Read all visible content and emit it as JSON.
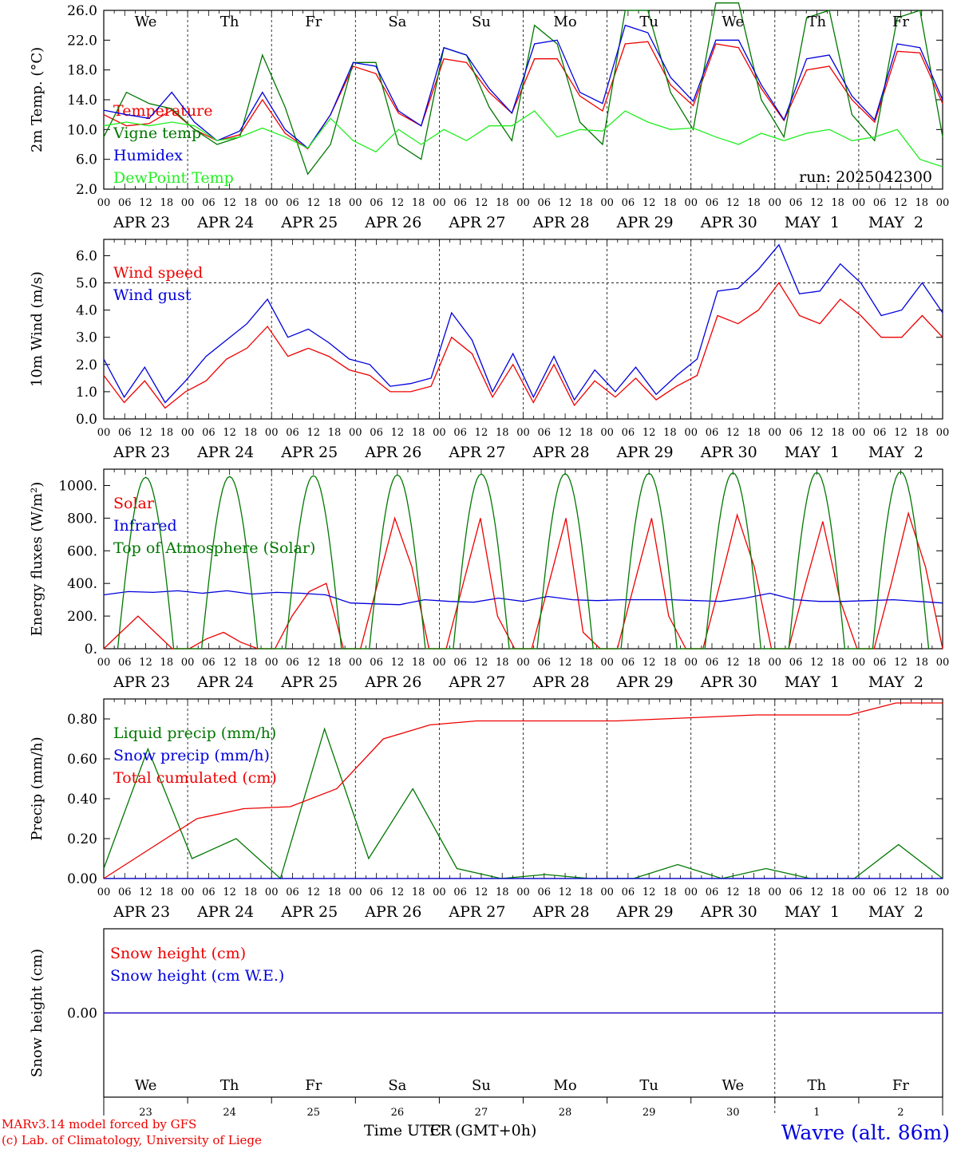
{
  "colors": {
    "red": "#ee0000",
    "green": "#007700",
    "blue": "#0000dd",
    "lime": "#22ee22",
    "dashed": "#000000"
  },
  "chart_data": [
    {
      "type": "line",
      "ylabel": "2m Temp. (°C)",
      "ylim": [
        2,
        26
      ],
      "yticks": [
        "2.0",
        "6.0",
        "10.0",
        "14.0",
        "18.0",
        "22.0",
        "26.0"
      ],
      "days": [
        {
          "label": "We",
          "color": "black"
        },
        {
          "label": "Th",
          "color": "black"
        },
        {
          "label": "Fr",
          "color": "black"
        },
        {
          "label": "Sa",
          "color": "red"
        },
        {
          "label": "Su",
          "color": "red"
        },
        {
          "label": "Mo",
          "color": "black"
        },
        {
          "label": "Tu",
          "color": "black"
        },
        {
          "label": "We",
          "color": "black"
        },
        {
          "label": "Th",
          "color": "black"
        },
        {
          "label": "Fr",
          "color": "black"
        }
      ],
      "annotation": "run: 2025042300",
      "series": [
        {
          "name": "Temperature",
          "color": "red",
          "values": [
            12,
            10.5,
            10.8,
            12.6,
            10,
            8.5,
            9.3,
            14,
            9.5,
            7.4,
            12,
            18.5,
            17.5,
            12.2,
            10.5,
            19.5,
            19,
            15,
            12.2,
            19.5,
            19.5,
            14.5,
            12.5,
            21.5,
            21.8,
            16,
            13.2,
            21.5,
            21,
            15.5,
            11.2,
            18,
            18.5,
            14,
            11,
            20.5,
            20.3,
            13.5
          ]
        },
        {
          "name": "Vigne temp",
          "color": "green",
          "values": [
            9,
            15,
            13.5,
            12.8,
            10,
            8,
            9,
            20,
            13,
            4,
            8,
            19,
            19,
            8,
            6,
            21,
            20,
            13,
            8.5,
            24,
            21.5,
            11,
            8,
            26,
            26,
            15,
            10,
            27,
            27,
            14,
            9,
            25,
            26,
            12,
            8.5,
            25,
            26,
            9
          ]
        },
        {
          "name": "Humidex",
          "color": "blue",
          "values": [
            12.6,
            12,
            11.5,
            15,
            11,
            8.5,
            9.8,
            15,
            10,
            7.5,
            12,
            19,
            18.5,
            12.5,
            10.5,
            21,
            20,
            15.5,
            12.2,
            21.5,
            22,
            15,
            13.5,
            24,
            23,
            17,
            13.8,
            22,
            22,
            16,
            11.3,
            19.5,
            20,
            14.5,
            11.3,
            21.5,
            21,
            14
          ]
        },
        {
          "name": "DewPoint Temp",
          "color": "lime",
          "values": [
            10.5,
            11,
            10.5,
            11,
            10.5,
            8.5,
            9,
            10.2,
            9,
            7.5,
            11.5,
            8.5,
            7,
            10,
            8,
            10,
            8.5,
            10.5,
            10.5,
            12.5,
            9,
            10,
            9.8,
            12.5,
            11,
            10,
            10.2,
            9,
            8,
            9.5,
            8.5,
            9.5,
            10,
            8.5,
            9,
            10,
            6,
            5
          ]
        }
      ]
    },
    {
      "type": "line",
      "ylabel": "10m Wind (m/s)",
      "ylim": [
        0,
        6.6
      ],
      "yticks": [
        "0.0",
        "1.0",
        "2.0",
        "3.0",
        "4.0",
        "5.0",
        "6.0"
      ],
      "reference_line": 5.0,
      "series": [
        {
          "name": "Wind speed",
          "color": "red",
          "values": [
            1.6,
            0.6,
            1.4,
            0.4,
            1.0,
            1.4,
            2.2,
            2.6,
            3.4,
            2.3,
            2.6,
            2.3,
            1.8,
            1.6,
            1.0,
            1.0,
            1.2,
            3.0,
            2.4,
            0.8,
            2.0,
            0.6,
            2.0,
            0.5,
            1.4,
            0.8,
            1.5,
            0.7,
            1.2,
            1.6,
            3.8,
            3.5,
            4.0,
            5.0,
            3.8,
            3.5,
            4.4,
            3.8,
            3.0,
            3.0,
            3.8,
            3.0
          ]
        },
        {
          "name": "Wind gust",
          "color": "blue",
          "values": [
            2.2,
            0.8,
            1.9,
            0.6,
            1.4,
            2.3,
            2.9,
            3.5,
            4.4,
            3.0,
            3.3,
            2.8,
            2.2,
            2.0,
            1.2,
            1.3,
            1.5,
            3.9,
            2.9,
            1.0,
            2.4,
            0.8,
            2.3,
            0.7,
            1.8,
            1.0,
            1.9,
            0.9,
            1.6,
            2.2,
            4.7,
            4.8,
            5.5,
            6.4,
            4.6,
            4.7,
            5.7,
            5.0,
            3.8,
            4.0,
            5.0,
            3.9
          ]
        }
      ]
    },
    {
      "type": "line",
      "ylabel": "Energy fluxes (W/m²)",
      "ylim": [
        0,
        1100
      ],
      "yticks": [
        "0.",
        "200.",
        "400.",
        "600.",
        "800.",
        "1000."
      ],
      "series": [
        {
          "name": "Solar",
          "color": "red",
          "values": [
            0,
            100,
            200,
            100,
            0,
            0,
            60,
            100,
            40,
            0,
            0,
            200,
            350,
            400,
            0,
            0,
            400,
            800,
            500,
            0,
            0,
            400,
            800,
            200,
            0,
            0,
            400,
            800,
            100,
            0,
            0,
            400,
            800,
            200,
            0,
            0,
            400,
            820,
            500,
            0,
            0,
            400,
            780,
            300,
            0,
            0,
            400,
            830,
            500,
            0
          ]
        },
        {
          "name": "Infrared",
          "color": "blue",
          "values": [
            330,
            350,
            345,
            355,
            340,
            355,
            335,
            345,
            340,
            330,
            280,
            275,
            270,
            300,
            290,
            285,
            310,
            290,
            320,
            300,
            295,
            300,
            300,
            300,
            295,
            290,
            310,
            340,
            300,
            290,
            290,
            295,
            300,
            290,
            280
          ]
        },
        {
          "name": "Top of Atmosphere (Solar)",
          "color": "green",
          "values": [
            1050,
            1055,
            1060,
            1065,
            1070,
            1072,
            1075,
            1078,
            1080,
            1085
          ]
        }
      ]
    },
    {
      "type": "line",
      "ylabel": "Precip (mm/h)",
      "ylim": [
        0,
        0.9
      ],
      "yticks": [
        "0.00",
        "0.20",
        "0.40",
        "0.60",
        "0.80"
      ],
      "series": [
        {
          "name": "Liquid precip (mm/h)",
          "color": "green",
          "values": [
            0.05,
            0.65,
            0.1,
            0.2,
            0.0,
            0.75,
            0.1,
            0.45,
            0.05,
            0.0,
            0.02,
            0.0,
            0.0,
            0.07,
            0.0,
            0.05,
            0.0,
            0.0,
            0.17,
            0.0
          ]
        },
        {
          "name": "Snow precip (mm/h)",
          "color": "blue",
          "values": [
            0,
            0,
            0,
            0,
            0
          ]
        },
        {
          "name": "Total cumulated (cm)",
          "color": "red",
          "values": [
            0.0,
            0.15,
            0.3,
            0.35,
            0.36,
            0.45,
            0.7,
            0.77,
            0.79,
            0.79,
            0.79,
            0.79,
            0.8,
            0.81,
            0.82,
            0.82,
            0.82,
            0.88,
            0.88
          ]
        }
      ]
    },
    {
      "type": "line",
      "ylabel": "Snow height (cm)",
      "ylim": [
        -1,
        1
      ],
      "yticks": [
        "0.00"
      ],
      "series": [
        {
          "name": "Snow height (cm)",
          "color": "red",
          "values": [
            0,
            0
          ]
        },
        {
          "name": "Snow height (cm W.E.)",
          "color": "blue",
          "values": [
            0,
            0
          ]
        }
      ],
      "day_numbers": [
        "23",
        "24",
        "25",
        "26",
        "27",
        "28",
        "29",
        "30",
        "1",
        "2"
      ]
    }
  ],
  "x_axis": {
    "hour_labels": [
      "00",
      "06",
      "12",
      "18"
    ],
    "end_label": "00",
    "dates": [
      "APR 23",
      "APR 24",
      "APR 25",
      "APR 26",
      "APR 27",
      "APR 28",
      "APR 29",
      "APR 30",
      "MAY  1",
      "MAY  2"
    ],
    "xlabel_a": "Time UTC",
    "xlabel_b": "(GMT+0h)",
    "xlabel_overlap": "FR"
  },
  "footer": {
    "credit_line1": "MARv3.14 model forced by GFS",
    "credit_line2": "(c) Lab. of Climatology, University of Liege",
    "station": "Wavre (alt. 86m)"
  }
}
